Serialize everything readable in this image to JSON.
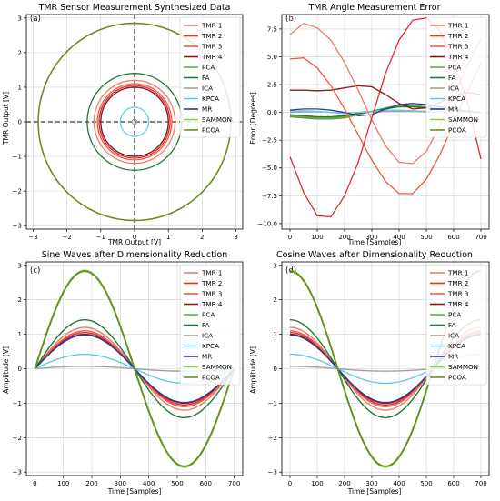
{
  "legend_labels": [
    "TMR 1",
    "TMR 2",
    "TMR 3",
    "TMR 4",
    "PCA",
    "FA",
    "ICA",
    "KPCA",
    "MR",
    "SAMMON",
    "PCOA"
  ],
  "series_colors": {
    "TMR 1": "#f07a6e",
    "TMR 2": "#e8282d",
    "TMR 3": "#f05a3a",
    "TMR 4": "#8b1a1a",
    "PCA": "#5ab04a",
    "FA": "#1e7a32",
    "ICA": "#a0a0a0",
    "KPCA": "#5fcde0",
    "MR": "#2a3a9a",
    "SAMMON": "#8fd04a",
    "PCOA": "#6b8e23"
  },
  "chart_data": [
    {
      "id": "a",
      "panel_tag": "(a)",
      "type": "scatter",
      "title": "TMR Sensor Measurement Synthesized Data",
      "xlabel": "TMR Output [V]",
      "ylabel": "TMR Output [V]",
      "xlim": [
        -3.2,
        3.2
      ],
      "ylim": [
        -3.1,
        3.1
      ],
      "xticks": [
        -3,
        -2,
        -1,
        0,
        1,
        2,
        3
      ],
      "yticks": [
        -3,
        -2,
        -1,
        0,
        1,
        2,
        3
      ],
      "grid": true,
      "legend_position": "top-right",
      "crosshair": "dashed lines at x=0 and y=0",
      "series": [
        {
          "name": "PCOA",
          "shape": "circle",
          "radius": 2.85
        },
        {
          "name": "FA",
          "shape": "circle",
          "radius": 1.4
        },
        {
          "name": "TMR 1",
          "shape": "circle",
          "radius": 1.2
        },
        {
          "name": "TMR 3",
          "shape": "circle",
          "radius": 1.1
        },
        {
          "name": "TMR 2",
          "shape": "circle",
          "radius": 1.05
        },
        {
          "name": "MR",
          "shape": "circle",
          "radius": 1.0
        },
        {
          "name": "TMR 4",
          "shape": "circle",
          "radius": 1.0
        },
        {
          "name": "KPCA",
          "shape": "circle",
          "radius": 0.42
        },
        {
          "name": "ICA",
          "shape": "circle",
          "radius": 0.07
        }
      ]
    },
    {
      "id": "b",
      "panel_tag": "(b)",
      "type": "line",
      "title": "TMR Angle Measurement Error",
      "xlabel": "Time [Samples]",
      "ylabel": "Error [Degrees]",
      "xlim": [
        -30,
        730
      ],
      "ylim": [
        -10.5,
        8.8
      ],
      "xticks": [
        0,
        100,
        200,
        300,
        400,
        500,
        600,
        700
      ],
      "yticks": [
        -10,
        -7.5,
        -5,
        -2.5,
        0,
        2.5,
        5,
        7.5
      ],
      "ytick_labels": [
        "−10.0",
        "−7.5",
        "−5.0",
        "−2.5",
        "0.0",
        "2.5",
        "5.0",
        "7.5"
      ],
      "grid": true,
      "legend_position": "top-right",
      "series": [
        {
          "name": "TMR 1",
          "x": [
            0,
            50,
            100,
            150,
            200,
            250,
            300,
            350,
            400,
            450,
            500,
            550,
            600,
            650,
            700
          ],
          "y": [
            7.0,
            8.0,
            7.6,
            6.5,
            4.5,
            2.0,
            -0.7,
            -3.0,
            -4.5,
            -4.6,
            -3.5,
            -1.2,
            1.5,
            4.2,
            6.6
          ]
        },
        {
          "name": "TMR 2",
          "x": [
            0,
            50,
            100,
            150,
            200,
            250,
            300,
            350,
            400,
            450,
            500,
            550,
            600,
            650,
            700
          ],
          "y": [
            -4.0,
            -7.2,
            -9.3,
            -9.4,
            -7.5,
            -4.5,
            -0.5,
            3.5,
            6.5,
            8.3,
            8.5,
            7.3,
            4.6,
            1.0,
            -4.2
          ]
        },
        {
          "name": "TMR 3",
          "x": [
            0,
            50,
            100,
            150,
            200,
            250,
            300,
            350,
            400,
            450,
            500,
            550,
            600,
            650,
            700
          ],
          "y": [
            4.8,
            4.9,
            4.0,
            2.4,
            0.3,
            -2.0,
            -4.3,
            -6.2,
            -7.3,
            -7.3,
            -6.0,
            -3.8,
            -1.0,
            1.9,
            4.4
          ]
        },
        {
          "name": "TMR 4",
          "x": [
            0,
            50,
            100,
            150,
            200,
            250,
            300,
            350,
            400,
            450,
            500,
            550,
            600,
            650,
            700
          ],
          "y": [
            2.0,
            2.0,
            1.95,
            2.0,
            2.2,
            2.4,
            2.3,
            1.6,
            0.8,
            0.3,
            0.4,
            0.9,
            1.5,
            1.8,
            1.6
          ]
        },
        {
          "name": "PCA",
          "x": [
            0,
            50,
            100,
            150,
            200,
            250,
            300,
            350,
            400,
            450,
            500,
            550,
            600,
            650,
            700
          ],
          "y": [
            -0.3,
            -0.4,
            -0.5,
            -0.5,
            -0.4,
            -0.2,
            0.1,
            0.4,
            0.6,
            0.6,
            0.5,
            0.4,
            0.3,
            0.1,
            0.0
          ]
        },
        {
          "name": "FA",
          "x": [
            0,
            50,
            100,
            150,
            200,
            250,
            300,
            350,
            400,
            450,
            500,
            550,
            600,
            650,
            700
          ],
          "y": [
            -0.2,
            -0.3,
            -0.4,
            -0.4,
            -0.3,
            -0.1,
            0.1,
            0.3,
            0.5,
            0.5,
            0.4,
            0.3,
            0.2,
            0.1,
            0.0
          ]
        },
        {
          "name": "ICA",
          "x": [
            0,
            50,
            100,
            150,
            200,
            250,
            300,
            350,
            400,
            450,
            500,
            550,
            600,
            650,
            700
          ],
          "y": [
            0.0,
            0.05,
            0.05,
            0.0,
            -0.05,
            0.0,
            0.05,
            0.1,
            0.1,
            0.1,
            0.05,
            0.0,
            0.0,
            0.0,
            0.0
          ]
        },
        {
          "name": "KPCA",
          "x": [
            0,
            50,
            100,
            150,
            200,
            250,
            300,
            350,
            400,
            450,
            500,
            550,
            600,
            650,
            700
          ],
          "y": [
            0.1,
            0.15,
            0.1,
            0.0,
            -0.1,
            0.0,
            0.1,
            0.2,
            0.2,
            0.15,
            0.1,
            0.05,
            0.0,
            0.0,
            0.0
          ]
        },
        {
          "name": "MR",
          "x": [
            0,
            50,
            100,
            150,
            200,
            250,
            300,
            350,
            400,
            450,
            500,
            550,
            600,
            650,
            700
          ],
          "y": [
            0.2,
            0.3,
            0.3,
            0.2,
            0.0,
            -0.3,
            -0.2,
            0.3,
            0.7,
            0.8,
            0.7,
            0.5,
            0.3,
            0.1,
            0.0
          ]
        },
        {
          "name": "SAMMON",
          "x": [
            0,
            50,
            100,
            150,
            200,
            250,
            300,
            350,
            400,
            450,
            500,
            550,
            600,
            650,
            700
          ],
          "y": [
            -0.3,
            -0.3,
            -0.4,
            -0.4,
            -0.3,
            -0.1,
            0.1,
            0.3,
            0.5,
            0.5,
            0.4,
            0.3,
            0.2,
            0.1,
            0.0
          ]
        },
        {
          "name": "PCOA",
          "x": [
            0,
            50,
            100,
            150,
            200,
            250,
            300,
            350,
            400,
            450,
            500,
            550,
            600,
            650,
            700
          ],
          "y": [
            -0.4,
            -0.5,
            -0.6,
            -0.6,
            -0.5,
            -0.2,
            0.1,
            0.4,
            0.6,
            0.6,
            0.5,
            0.4,
            0.3,
            0.1,
            0.0
          ]
        }
      ]
    },
    {
      "id": "c",
      "panel_tag": "(c)",
      "type": "line",
      "title": "Sine Waves after Dimensionality Reduction",
      "xlabel": "Time [Samples]",
      "ylabel": "Amplitude [V]",
      "xlim": [
        -30,
        730
      ],
      "ylim": [
        -3.1,
        3.1
      ],
      "xticks": [
        0,
        100,
        200,
        300,
        400,
        500,
        600,
        700
      ],
      "yticks": [
        -3,
        -2,
        -1,
        0,
        1,
        2,
        3
      ],
      "grid": true,
      "legend_position": "top-right",
      "wave": "sine",
      "period_samples": 700,
      "series": [
        {
          "name": "TMR 1",
          "amplitude": 1.2
        },
        {
          "name": "TMR 2",
          "amplitude": 1.05
        },
        {
          "name": "TMR 3",
          "amplitude": 1.1
        },
        {
          "name": "TMR 4",
          "amplitude": 1.0
        },
        {
          "name": "PCA",
          "amplitude": 2.85
        },
        {
          "name": "FA",
          "amplitude": 1.42
        },
        {
          "name": "ICA",
          "amplitude": 0.07
        },
        {
          "name": "KPCA",
          "amplitude": 0.42
        },
        {
          "name": "MR",
          "amplitude": 0.98
        },
        {
          "name": "SAMMON",
          "amplitude": 2.85
        },
        {
          "name": "PCOA",
          "amplitude": 2.83
        }
      ]
    },
    {
      "id": "d",
      "panel_tag": "(d)",
      "type": "line",
      "title": "Cosine Waves after Dimensionality Reduction",
      "xlabel": "Time [Samples]",
      "ylabel": "Amplitude [V]",
      "xlim": [
        -30,
        730
      ],
      "ylim": [
        -3.1,
        3.1
      ],
      "xticks": [
        0,
        100,
        200,
        300,
        400,
        500,
        600,
        700
      ],
      "yticks": [
        -3,
        -2,
        -1,
        0,
        1,
        2,
        3
      ],
      "grid": true,
      "legend_position": "top-right",
      "wave": "cosine",
      "period_samples": 700,
      "series": [
        {
          "name": "TMR 1",
          "amplitude": 1.2
        },
        {
          "name": "TMR 2",
          "amplitude": 1.05
        },
        {
          "name": "TMR 3",
          "amplitude": 1.1
        },
        {
          "name": "TMR 4",
          "amplitude": 1.0
        },
        {
          "name": "PCA",
          "amplitude": 2.85
        },
        {
          "name": "FA",
          "amplitude": 1.42
        },
        {
          "name": "ICA",
          "amplitude": 0.07
        },
        {
          "name": "KPCA",
          "amplitude": 0.42
        },
        {
          "name": "MR",
          "amplitude": 0.98
        },
        {
          "name": "SAMMON",
          "amplitude": 2.85
        },
        {
          "name": "PCOA",
          "amplitude": 2.83
        }
      ]
    }
  ]
}
